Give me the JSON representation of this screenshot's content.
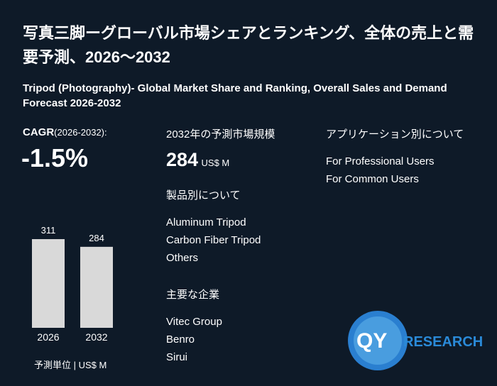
{
  "title": "写真三脚ーグローバル市場シェアとランキング、全体の売上と需要予測、2026～2032",
  "subtitle": "Tripod (Photography)- Global Market Share and Ranking, Overall Sales and Demand Forecast 2026-2032",
  "cagr": {
    "label": "CAGR",
    "period": "(2026-2032):",
    "value": "-1.5%"
  },
  "market_size": {
    "label": "2032年の予測市場規模",
    "value": 284,
    "unit": "US$ M"
  },
  "product": {
    "label": "製品別について",
    "items": [
      "Aluminum Tripod",
      "Carbon Fiber Tripod",
      "Others"
    ]
  },
  "companies": {
    "label": "主要な企業",
    "items": [
      "Vitec Group",
      "Benro",
      "Sirui"
    ]
  },
  "application": {
    "label": "アプリケーション別について",
    "items": [
      "For Professional Users",
      "For Common Users"
    ]
  },
  "chart_data": {
    "type": "bar",
    "categories": [
      "2026",
      "2032"
    ],
    "values": [
      311,
      284
    ],
    "color": "#d9d9d9"
  },
  "unit_note": "予測単位 | US$ M",
  "logo": {
    "mark": "QY",
    "text": "RESEARCH"
  }
}
